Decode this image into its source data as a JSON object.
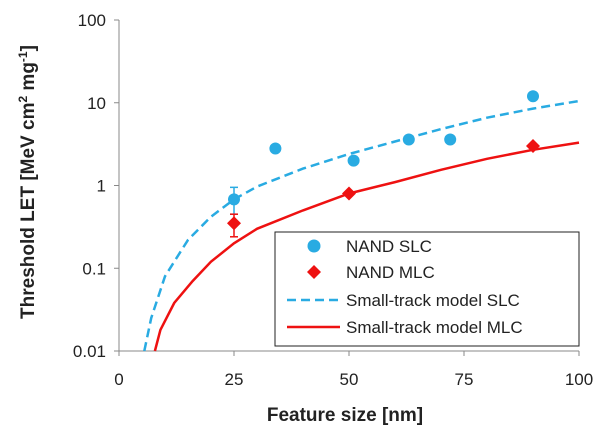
{
  "chart_data": {
    "type": "scatter",
    "title": "",
    "xlabel": "Feature size [nm]",
    "ylabel_main": "Threshold LET [MeV cm",
    "ylabel_sup1": "2",
    "ylabel_mid": " mg",
    "ylabel_sup2": "-1",
    "ylabel_end": "]",
    "x_scale": "linear",
    "y_scale": "log",
    "xlim": [
      0,
      100
    ],
    "ylim": [
      0.01,
      100
    ],
    "x_ticks": [
      0,
      25,
      50,
      75,
      100
    ],
    "y_ticks": [
      0.01,
      0.1,
      1,
      10,
      100
    ],
    "x_tick_labels": [
      "0",
      "25",
      "50",
      "75",
      "100"
    ],
    "y_tick_labels": [
      "0.01",
      "0.1",
      "1",
      "10",
      "100"
    ],
    "grid": false,
    "legend_position": "bottom-right",
    "colors": {
      "slc": "#29abe2",
      "mlc": "#ee1111",
      "slc_model": "#29abe2",
      "mlc_model": "#ee1111"
    },
    "series": [
      {
        "name": "NAND SLC",
        "kind": "scatter",
        "marker": "circle",
        "points": [
          {
            "x": 25,
            "y": 0.68,
            "err_lo": 0.45,
            "err_hi": 0.95
          },
          {
            "x": 34,
            "y": 2.8
          },
          {
            "x": 51,
            "y": 2.0
          },
          {
            "x": 63,
            "y": 3.6
          },
          {
            "x": 72,
            "y": 3.6
          },
          {
            "x": 90,
            "y": 12
          }
        ]
      },
      {
        "name": "NAND MLC",
        "kind": "scatter",
        "marker": "diamond",
        "points": [
          {
            "x": 25,
            "y": 0.35,
            "err_lo": 0.24,
            "err_hi": 0.45
          },
          {
            "x": 50,
            "y": 0.8
          },
          {
            "x": 90,
            "y": 3.0
          }
        ]
      },
      {
        "name": "Small-track model SLC",
        "kind": "line",
        "style": "dashed",
        "points": [
          {
            "x": 5.5,
            "y": 0.01
          },
          {
            "x": 7,
            "y": 0.025
          },
          {
            "x": 10,
            "y": 0.08
          },
          {
            "x": 15,
            "y": 0.22
          },
          {
            "x": 20,
            "y": 0.42
          },
          {
            "x": 25,
            "y": 0.68
          },
          {
            "x": 30,
            "y": 0.97
          },
          {
            "x": 40,
            "y": 1.6
          },
          {
            "x": 50,
            "y": 2.4
          },
          {
            "x": 60,
            "y": 3.4
          },
          {
            "x": 70,
            "y": 4.8
          },
          {
            "x": 80,
            "y": 6.6
          },
          {
            "x": 90,
            "y": 8.5
          },
          {
            "x": 100,
            "y": 10.5
          }
        ]
      },
      {
        "name": "Small-track model MLC",
        "kind": "line",
        "style": "solid",
        "points": [
          {
            "x": 7.8,
            "y": 0.01
          },
          {
            "x": 9,
            "y": 0.018
          },
          {
            "x": 12,
            "y": 0.038
          },
          {
            "x": 16,
            "y": 0.07
          },
          {
            "x": 20,
            "y": 0.12
          },
          {
            "x": 25,
            "y": 0.2
          },
          {
            "x": 30,
            "y": 0.3
          },
          {
            "x": 40,
            "y": 0.5
          },
          {
            "x": 50,
            "y": 0.8
          },
          {
            "x": 60,
            "y": 1.1
          },
          {
            "x": 70,
            "y": 1.55
          },
          {
            "x": 80,
            "y": 2.1
          },
          {
            "x": 90,
            "y": 2.7
          },
          {
            "x": 100,
            "y": 3.3
          }
        ]
      }
    ]
  }
}
